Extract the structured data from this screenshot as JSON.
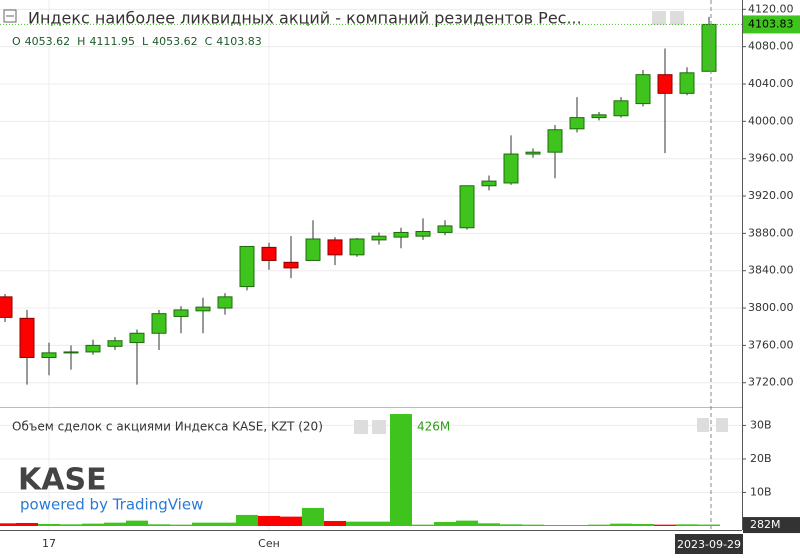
{
  "chart_data": {
    "type": "candlestick",
    "title": "Индекс наиболее ликвидных акций - компаний резидентов Рес...",
    "legend_letters": [
      "O",
      "H",
      "L",
      "C"
    ],
    "categories": [
      null,
      null,
      "17",
      null,
      null,
      null,
      null,
      null,
      null,
      null,
      null,
      null,
      "Сен",
      null,
      null,
      null,
      null,
      null,
      null,
      null,
      null,
      null,
      null,
      null,
      null,
      null,
      null,
      null,
      null,
      null,
      null,
      null,
      "2023-09-29"
    ],
    "ohlc": {
      "open": [
        3812,
        3789,
        3747,
        3753,
        3753,
        3759,
        3763,
        3773,
        3791,
        3797,
        3800,
        3823,
        3865,
        3849,
        3851,
        3873,
        3857,
        3873,
        3876,
        3877,
        3881,
        3886,
        3931,
        3934,
        3965,
        3967,
        3992,
        4004,
        4006,
        4019,
        4050,
        4030,
        4053.62
      ],
      "high": [
        3815,
        3798,
        3763,
        3760,
        3766,
        3769,
        3777,
        3798,
        3802,
        3811,
        3816,
        3866,
        3870,
        3877,
        3894,
        3876,
        3875,
        3881,
        3886,
        3896,
        3894,
        3931,
        3942,
        3985,
        3971,
        3996,
        4026,
        4010,
        4026,
        4055,
        4078,
        4058,
        4111.95
      ],
      "low": [
        3785,
        3718,
        3728,
        3734,
        3750,
        3755,
        3718,
        3755,
        3773,
        3773,
        3793,
        3819,
        3841,
        3832,
        3851,
        3846,
        3855,
        3868,
        3864,
        3873,
        3878,
        3884,
        3926,
        3932,
        3961,
        3939,
        3988,
        4001,
        4004,
        4016,
        3966,
        4028,
        4053.62
      ],
      "close": [
        3790,
        3747,
        3752,
        3753,
        3760,
        3765,
        3773,
        3794,
        3798,
        3801,
        3812,
        3866,
        3851,
        3843,
        3874,
        3857,
        3874,
        3877,
        3881,
        3882,
        3888,
        3931,
        3936,
        3965,
        3967,
        3991,
        4004,
        4007,
        4022,
        4050,
        4030,
        4052,
        4103.83
      ]
    },
    "up_color": "#3ec41c",
    "down_color": "#ff0000",
    "ylim": [
      3694,
      4130
    ],
    "yticks": [
      {
        "value": 4120,
        "label": "4120.00"
      },
      {
        "value": 4080,
        "label": "4080.00"
      },
      {
        "value": 4040,
        "label": "4040.00"
      },
      {
        "value": 4000,
        "label": "4000.00"
      },
      {
        "value": 3960,
        "label": "3960.00"
      },
      {
        "value": 3920,
        "label": "3920.00"
      },
      {
        "value": 3880,
        "label": "3880.00"
      },
      {
        "value": 3840,
        "label": "3840.00"
      },
      {
        "value": 3800,
        "label": "3800.00"
      },
      {
        "value": 3760,
        "label": "3760.00"
      },
      {
        "value": 3720,
        "label": "3720.00"
      }
    ],
    "volume": {
      "name": "Объем сделок с акциями Индекса KASE, KZT (20)",
      "axis": "y2",
      "values": [
        0.8,
        0.9,
        0.6,
        0.5,
        0.7,
        1.0,
        1.6,
        0.5,
        0.4,
        1.0,
        1.0,
        3.3,
        3.0,
        2.8,
        5.4,
        1.5,
        1.3,
        1.3,
        33.4,
        0.4,
        1.2,
        1.6,
        0.8,
        0.5,
        0.4,
        0.3,
        0.3,
        0.4,
        0.7,
        0.6,
        0.4,
        0.5,
        0.426
      ],
      "value_labels": [
        null,
        null,
        null,
        null,
        null,
        null,
        null,
        null,
        null,
        null,
        null,
        null,
        null,
        null,
        null,
        null,
        null,
        null,
        null,
        null,
        null,
        null,
        null,
        null,
        null,
        null,
        null,
        null,
        null,
        null,
        null,
        null,
        "426M"
      ],
      "ma_label": {
        "value": 0.282,
        "label": "282M"
      }
    },
    "y2lim": [
      0,
      35.2
    ],
    "y2ticks": [
      {
        "value": 30,
        "label": "30B"
      },
      {
        "value": 20,
        "label": "20B"
      },
      {
        "value": 10,
        "label": "10B"
      }
    ],
    "grid": true,
    "logo": "KASE",
    "credit": "powered by TradingView"
  }
}
